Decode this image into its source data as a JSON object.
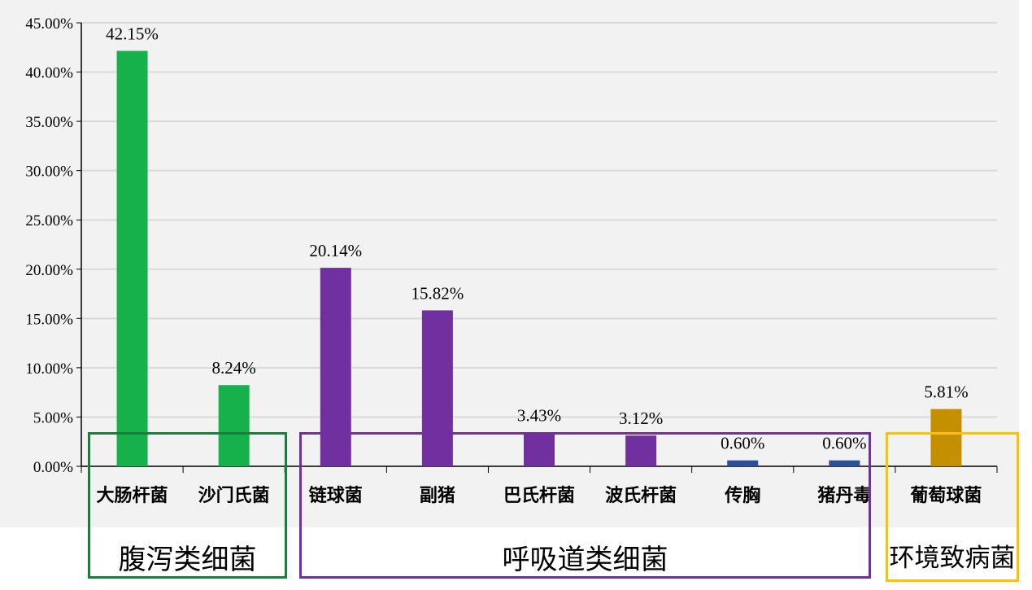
{
  "chart_data": {
    "type": "bar",
    "title": "",
    "xlabel": "",
    "ylabel": "",
    "categories": [
      "大肠杆菌",
      "沙门氏菌",
      "链球菌",
      "副猪",
      "巴氏杆菌",
      "波氏杆菌",
      "传胸",
      "猪丹毒",
      "葡萄球菌"
    ],
    "values": [
      42.15,
      8.24,
      20.14,
      15.82,
      3.43,
      3.12,
      0.6,
      0.6,
      5.81
    ],
    "value_labels": [
      "42.15%",
      "8.24%",
      "20.14%",
      "15.82%",
      "3.43%",
      "3.12%",
      "0.60%",
      "0.60%",
      "5.81%"
    ],
    "bar_colors": [
      "#16b14a",
      "#16b14a",
      "#7030a0",
      "#7030a0",
      "#7030a0",
      "#7030a0",
      "#2e4f9b",
      "#2e4f9b",
      "#c49000"
    ],
    "ylim": [
      0,
      45
    ],
    "yticks": [
      "0.00%",
      "5.00%",
      "10.00%",
      "15.00%",
      "20.00%",
      "25.00%",
      "30.00%",
      "35.00%",
      "40.00%",
      "45.00%"
    ],
    "grid": true,
    "legend": "none"
  },
  "groups": [
    {
      "label": "腹泻类细菌",
      "color": "#1a7f3c"
    },
    {
      "label": "呼吸道类细菌",
      "color": "#7030a0"
    },
    {
      "label": "环境致病菌",
      "color": "#ffc000"
    }
  ]
}
